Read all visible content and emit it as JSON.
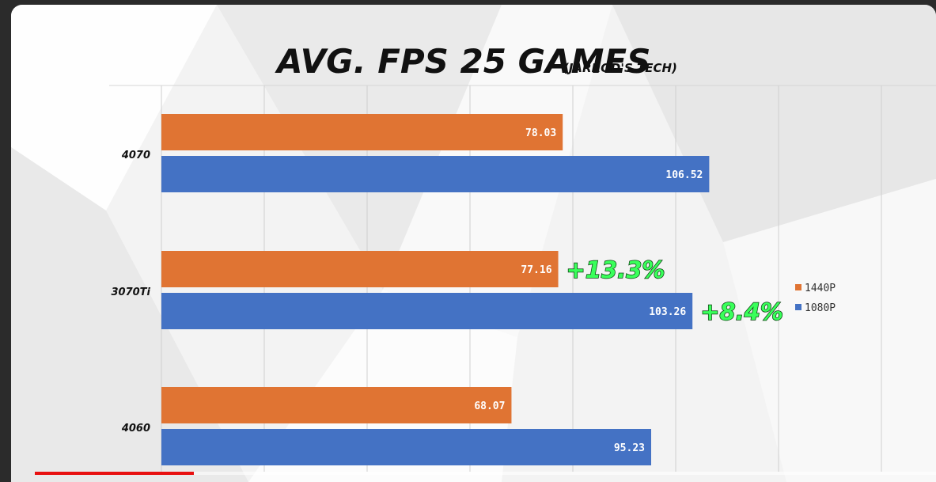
{
  "player": {
    "progress_fraction": 0.176,
    "accent_color": "#e81010"
  },
  "chart_data": {
    "type": "bar",
    "orientation": "horizontal",
    "title": "AVG. FPS 25 GAMES",
    "subtitle": "(JARROD'S TECH)",
    "categories": [
      "4070",
      "3070Ti",
      "4060"
    ],
    "series": [
      {
        "name": "1440P",
        "color": "#e07433",
        "values": [
          78.03,
          77.16,
          68.07
        ]
      },
      {
        "name": "1080P",
        "color": "#4472c4",
        "values": [
          106.52,
          103.26,
          95.23
        ]
      }
    ],
    "value_labels": {
      "1440P": [
        "78.03",
        "77.16",
        "68.07"
      ],
      "1080P": [
        "106.52",
        "103.26",
        "95.23"
      ]
    },
    "annotations": [
      {
        "text": "+13.3%",
        "category": "3070Ti",
        "series": "1440P"
      },
      {
        "text": "+8.4%",
        "category": "3070Ti",
        "series": "1080P"
      }
    ],
    "xlim": [
      0,
      180
    ],
    "grid": true,
    "legend_position": "right"
  }
}
